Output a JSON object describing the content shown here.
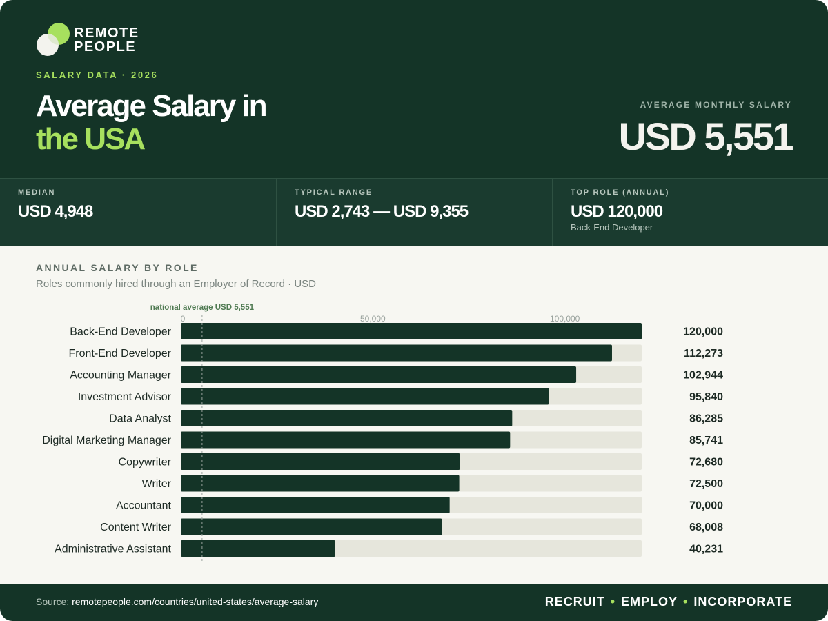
{
  "brand": {
    "line1": "REMOTE",
    "line2": "PEOPLE",
    "accent_color": "#a7e05e",
    "dark_color": "#143427"
  },
  "header": {
    "eyebrow": "SALARY DATA · 2026",
    "title_line1": "Average Salary in",
    "title_line2": "the USA",
    "kpi_label": "AVERAGE MONTHLY SALARY",
    "kpi_value": "USD 5,551"
  },
  "stats": [
    {
      "label": "MEDIAN",
      "value": "USD 4,948",
      "sub": ""
    },
    {
      "label": "TYPICAL RANGE",
      "value": "USD 2,743 — USD 9,355",
      "sub": ""
    },
    {
      "label": "TOP ROLE (ANNUAL)",
      "value": "USD 120,000",
      "sub": "Back-End Developer"
    }
  ],
  "section": {
    "title": "ANNUAL SALARY BY ROLE",
    "subtitle": "Roles commonly hired through an Employer of Record · USD"
  },
  "chart_data": {
    "type": "bar",
    "orientation": "horizontal",
    "title": "ANNUAL SALARY BY ROLE",
    "subtitle": "Roles commonly hired through an Employer of Record · USD",
    "categories": [
      "Back-End Developer",
      "Front-End Developer",
      "Accounting Manager",
      "Investment Advisor",
      "Data Analyst",
      "Digital Marketing Manager",
      "Copywriter",
      "Writer",
      "Accountant",
      "Content Writer",
      "Administrative Assistant"
    ],
    "values": [
      120000,
      112273,
      102944,
      95840,
      86285,
      85741,
      72680,
      72500,
      70000,
      68008,
      40231
    ],
    "value_labels": [
      "120,000",
      "112,273",
      "102,944",
      "95,840",
      "86,285",
      "85,741",
      "72,680",
      "72,500",
      "70,000",
      "68,008",
      "40,231"
    ],
    "xlim": [
      0,
      120000
    ],
    "x_ticks": [
      0,
      50000,
      100000
    ],
    "x_tick_labels": [
      "0",
      "50,000",
      "100,000"
    ],
    "reference_line": {
      "value": 5551,
      "label": "national average USD 5,551"
    },
    "bar_color": "#143427",
    "track_color": "#e6e6dc",
    "grid": false,
    "legend": "none"
  },
  "footer": {
    "source_label": "Source:",
    "source_url": "remotepeople.com/countries/united-states/average-salary",
    "tag1": "RECRUIT",
    "tag2": "EMPLOY",
    "tag3": "INCORPORATE"
  }
}
